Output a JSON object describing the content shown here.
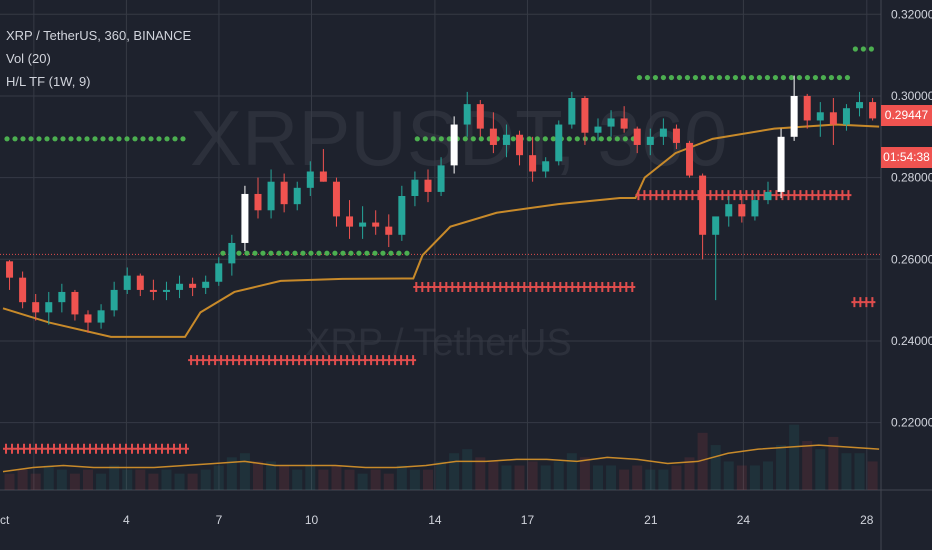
{
  "chart_data": {
    "type": "candlestick",
    "title": "XRP / TetherUS, 360, BINANCE",
    "indicators": [
      "Vol (20)",
      "H/L TF (1W, 9)"
    ],
    "watermark": {
      "symbol": "XRPUSDT, 360",
      "name": "XRP / TetherUS"
    },
    "y_ticks": [
      "0.22000",
      "0.24000",
      "0.26000",
      "0.28000",
      "0.30000",
      "0.32000"
    ],
    "ylim": [
      0.2035,
      0.3235
    ],
    "x_ticks": [
      {
        "label": "ct",
        "day": 1
      },
      {
        "label": "4",
        "day": 4
      },
      {
        "label": "7",
        "day": 7
      },
      {
        "label": "10",
        "day": 10
      },
      {
        "label": "14",
        "day": 14
      },
      {
        "label": "17",
        "day": 17
      },
      {
        "label": "21",
        "day": 21
      },
      {
        "label": "24",
        "day": 24
      },
      {
        "label": "28",
        "day": 28
      }
    ],
    "last_price_label": "0.29447",
    "countdown_label": "01:54:38",
    "horizontal_line": 0.2612,
    "weekly_high_levels": [
      {
        "from": 0.0,
        "to": 6.0,
        "price": 0.2895
      },
      {
        "from": 7.0,
        "to": 13.3,
        "price": 0.2615
      },
      {
        "from": 13.3,
        "to": 20.5,
        "price": 0.2895
      },
      {
        "from": 20.5,
        "to": 27.5,
        "price": 0.3045
      },
      {
        "from": 27.5,
        "to": 28.3,
        "price": 0.3115
      }
    ],
    "weekly_low_levels": [
      {
        "from": 0.0,
        "to": 6.0,
        "price": 0.2136
      },
      {
        "from": 6.0,
        "to": 13.3,
        "price": 0.2353
      },
      {
        "from": 13.3,
        "to": 20.5,
        "price": 0.2532
      },
      {
        "from": 20.5,
        "to": 27.5,
        "price": 0.2757
      },
      {
        "from": 27.5,
        "to": 28.3,
        "price": 0.2495
      }
    ],
    "ohlc": [
      [
        0.2595,
        0.2598,
        0.2525,
        0.2555
      ],
      [
        0.2555,
        0.257,
        0.248,
        0.2495
      ],
      [
        0.2495,
        0.2515,
        0.245,
        0.247
      ],
      [
        0.247,
        0.252,
        0.244,
        0.2495
      ],
      [
        0.2495,
        0.254,
        0.247,
        0.252
      ],
      [
        0.252,
        0.2525,
        0.245,
        0.2465
      ],
      [
        0.2465,
        0.2475,
        0.242,
        0.2445
      ],
      [
        0.2445,
        0.249,
        0.243,
        0.2475
      ],
      [
        0.2475,
        0.2545,
        0.246,
        0.2525
      ],
      [
        0.2525,
        0.258,
        0.2515,
        0.256
      ],
      [
        0.256,
        0.2565,
        0.251,
        0.2525
      ],
      [
        0.2525,
        0.255,
        0.25,
        0.252
      ],
      [
        0.252,
        0.2545,
        0.25,
        0.2525
      ],
      [
        0.2525,
        0.256,
        0.2505,
        0.254
      ],
      [
        0.254,
        0.2555,
        0.251,
        0.253
      ],
      [
        0.253,
        0.256,
        0.2515,
        0.2545
      ],
      [
        0.2545,
        0.2605,
        0.2535,
        0.259
      ],
      [
        0.259,
        0.266,
        0.256,
        0.264
      ],
      [
        0.264,
        0.278,
        0.262,
        0.276
      ],
      [
        0.276,
        0.28,
        0.27,
        0.272
      ],
      [
        0.272,
        0.282,
        0.27,
        0.279
      ],
      [
        0.279,
        0.281,
        0.2715,
        0.2735
      ],
      [
        0.2735,
        0.279,
        0.272,
        0.2775
      ],
      [
        0.2775,
        0.284,
        0.2755,
        0.2815
      ],
      [
        0.2815,
        0.287,
        0.279,
        0.279
      ],
      [
        0.279,
        0.28,
        0.268,
        0.2705
      ],
      [
        0.2705,
        0.2745,
        0.265,
        0.268
      ],
      [
        0.268,
        0.273,
        0.265,
        0.269
      ],
      [
        0.269,
        0.272,
        0.266,
        0.268
      ],
      [
        0.268,
        0.271,
        0.263,
        0.266
      ],
      [
        0.266,
        0.278,
        0.2645,
        0.2755
      ],
      [
        0.2755,
        0.2815,
        0.273,
        0.2795
      ],
      [
        0.2795,
        0.282,
        0.274,
        0.2765
      ],
      [
        0.2765,
        0.285,
        0.2755,
        0.283
      ],
      [
        0.283,
        0.295,
        0.281,
        0.293
      ],
      [
        0.293,
        0.301,
        0.29,
        0.298
      ],
      [
        0.298,
        0.299,
        0.29,
        0.292
      ],
      [
        0.292,
        0.296,
        0.286,
        0.288
      ],
      [
        0.288,
        0.293,
        0.285,
        0.2905
      ],
      [
        0.2905,
        0.2915,
        0.283,
        0.2855
      ],
      [
        0.2855,
        0.29,
        0.279,
        0.2815
      ],
      [
        0.2815,
        0.285,
        0.28,
        0.284
      ],
      [
        0.284,
        0.294,
        0.283,
        0.293
      ],
      [
        0.293,
        0.301,
        0.292,
        0.2995
      ],
      [
        0.2995,
        0.3,
        0.288,
        0.291
      ],
      [
        0.291,
        0.2945,
        0.289,
        0.2925
      ],
      [
        0.2925,
        0.2965,
        0.29,
        0.2945
      ],
      [
        0.2945,
        0.2975,
        0.291,
        0.292
      ],
      [
        0.292,
        0.2925,
        0.286,
        0.288
      ],
      [
        0.288,
        0.292,
        0.2855,
        0.29
      ],
      [
        0.29,
        0.2945,
        0.288,
        0.292
      ],
      [
        0.292,
        0.293,
        0.287,
        0.2885
      ],
      [
        0.2885,
        0.289,
        0.28,
        0.2805
      ],
      [
        0.2805,
        0.281,
        0.26,
        0.266
      ],
      [
        0.266,
        0.27,
        0.25,
        0.2705
      ],
      [
        0.2705,
        0.2755,
        0.268,
        0.2735
      ],
      [
        0.2735,
        0.276,
        0.269,
        0.2705
      ],
      [
        0.2705,
        0.276,
        0.2695,
        0.2745
      ],
      [
        0.2745,
        0.279,
        0.2735,
        0.2765
      ],
      [
        0.2765,
        0.292,
        0.275,
        0.29
      ],
      [
        0.29,
        0.305,
        0.289,
        0.3
      ],
      [
        0.3,
        0.3005,
        0.292,
        0.294
      ],
      [
        0.294,
        0.2985,
        0.29,
        0.296
      ],
      [
        0.296,
        0.2995,
        0.288,
        0.293
      ],
      [
        0.293,
        0.298,
        0.2915,
        0.297
      ],
      [
        0.297,
        0.301,
        0.295,
        0.2985
      ],
      [
        0.2985,
        0.2995,
        0.294,
        0.2945
      ]
    ],
    "hl_midline": [
      [
        0.0,
        0.248
      ],
      [
        1.5,
        0.2445
      ],
      [
        3.5,
        0.241
      ],
      [
        5.9,
        0.241
      ],
      [
        6.4,
        0.247
      ],
      [
        7.5,
        0.252
      ],
      [
        9.0,
        0.2547
      ],
      [
        11.0,
        0.2552
      ],
      [
        13.0,
        0.2553
      ],
      [
        13.3,
        0.2553
      ],
      [
        13.6,
        0.261
      ],
      [
        14.5,
        0.268
      ],
      [
        16.0,
        0.2714
      ],
      [
        18.0,
        0.2735
      ],
      [
        20.0,
        0.275
      ],
      [
        20.5,
        0.275
      ],
      [
        20.8,
        0.28
      ],
      [
        21.8,
        0.286
      ],
      [
        23.0,
        0.2895
      ],
      [
        25.0,
        0.292
      ],
      [
        27.0,
        0.293
      ],
      [
        28.4,
        0.2925
      ]
    ],
    "volume_ma": [
      0.208,
      0.209,
      0.2095,
      0.209,
      0.209,
      0.209,
      0.2095,
      0.21,
      0.2105,
      0.2095,
      0.2095,
      0.2095,
      0.209,
      0.209,
      0.2095,
      0.2105,
      0.2105,
      0.211,
      0.211,
      0.2105,
      0.2115,
      0.211,
      0.21,
      0.2105,
      0.2125,
      0.2135,
      0.214,
      0.2145,
      0.214,
      0.2135
    ],
    "volumes": [
      0.004,
      0.005,
      0.004,
      0.006,
      0.005,
      0.004,
      0.005,
      0.004,
      0.006,
      0.005,
      0.005,
      0.004,
      0.005,
      0.004,
      0.004,
      0.005,
      0.006,
      0.008,
      0.009,
      0.007,
      0.007,
      0.006,
      0.005,
      0.006,
      0.005,
      0.006,
      0.005,
      0.004,
      0.005,
      0.004,
      0.006,
      0.005,
      0.005,
      0.007,
      0.009,
      0.01,
      0.008,
      0.007,
      0.006,
      0.006,
      0.007,
      0.006,
      0.007,
      0.009,
      0.008,
      0.006,
      0.006,
      0.005,
      0.006,
      0.005,
      0.005,
      0.006,
      0.008,
      0.014,
      0.011,
      0.007,
      0.006,
      0.006,
      0.007,
      0.011,
      0.016,
      0.012,
      0.01,
      0.013,
      0.009,
      0.009,
      0.007
    ],
    "colors": {
      "background": "#1e222d",
      "grid": "#363a45",
      "text": "#d1d4dc",
      "up": "#26a69a",
      "down": "#ef5350",
      "highlight": "#ffffff",
      "high_dots": "#4caf50",
      "low_crosses": "#e04d4d",
      "midline": "#c88a2a",
      "volume_ma": "#c88a2a",
      "hline": "#e04d4d",
      "watermark": "#2c303b"
    }
  }
}
